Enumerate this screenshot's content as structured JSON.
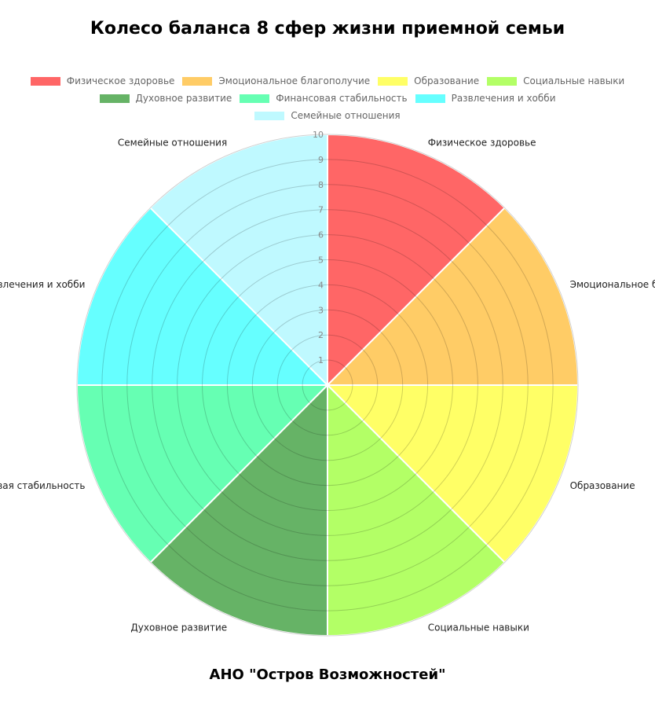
{
  "title": "Колесо баланса 8 сфер жизни приемной семьи",
  "footer": "АНО \"Остров Возможностей\"",
  "chart_data": {
    "type": "polarArea",
    "categories": [
      "Физическое здоровье",
      "Эмоциональное благополучие",
      "Образование",
      "Социальные навыки",
      "Духовное развитие",
      "Финансовая стабильность",
      "Развлечения и хобби",
      "Семейные отношения"
    ],
    "values": [
      10,
      10,
      10,
      10,
      10,
      10,
      10,
      10
    ],
    "colors": [
      "#ff6666",
      "#ffcc66",
      "#ffff66",
      "#b3ff66",
      "#66b366",
      "#66ffb3",
      "#66ffff",
      "#bff9ff"
    ],
    "r_range": [
      0,
      10
    ],
    "r_ticks": [
      "1",
      "2",
      "3",
      "4",
      "5",
      "6",
      "7",
      "8",
      "9",
      "10"
    ],
    "legend_position": "top",
    "legend_rows": [
      [
        0,
        1,
        2,
        3
      ],
      [
        4,
        5,
        6
      ],
      [
        7
      ]
    ],
    "grid": true
  }
}
